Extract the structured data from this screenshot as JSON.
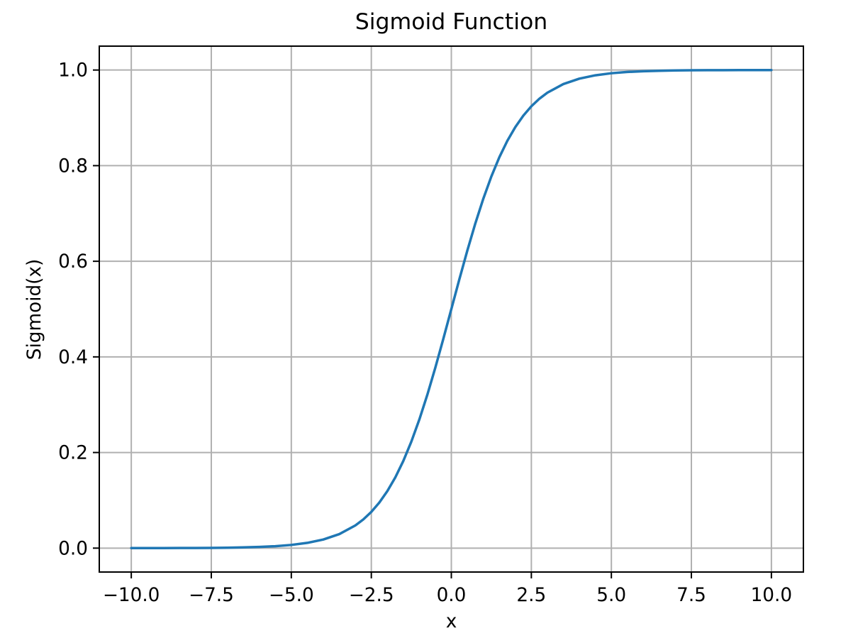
{
  "figure": {
    "background": "#ffffff",
    "text_color": "#000000"
  },
  "chart_data": {
    "type": "line",
    "title": "Sigmoid Function",
    "xlabel": "x",
    "ylabel": "Sigmoid(x)",
    "xlim": [
      -11,
      11
    ],
    "ylim": [
      -0.05,
      1.05
    ],
    "grid": true,
    "legend": null,
    "line_color": "#1f77b4",
    "grid_color": "#b0b0b0",
    "spine_color": "#000000",
    "x_ticks": [
      -10.0,
      -7.5,
      -5.0,
      -2.5,
      0.0,
      2.5,
      5.0,
      7.5,
      10.0
    ],
    "x_tick_labels": [
      "−10.0",
      "−7.5",
      "−5.0",
      "−2.5",
      "0.0",
      "2.5",
      "5.0",
      "7.5",
      "10.0"
    ],
    "y_ticks": [
      0.0,
      0.2,
      0.4,
      0.6,
      0.8,
      1.0
    ],
    "y_tick_labels": [
      "0.0",
      "0.2",
      "0.4",
      "0.6",
      "0.8",
      "1.0"
    ],
    "series": [
      {
        "x": [
          -10,
          -9.5,
          -9,
          -8.5,
          -8,
          -7.5,
          -7,
          -6.5,
          -6,
          -5.5,
          -5,
          -4.5,
          -4,
          -3.5,
          -3,
          -2.75,
          -2.5,
          -2.25,
          -2,
          -1.75,
          -1.5,
          -1.25,
          -1,
          -0.75,
          -0.5,
          -0.25,
          0,
          0.25,
          0.5,
          0.75,
          1,
          1.25,
          1.5,
          1.75,
          2,
          2.25,
          2.5,
          2.75,
          3,
          3.5,
          4,
          4.5,
          5,
          5.5,
          6,
          6.5,
          7,
          7.5,
          8,
          8.5,
          9,
          9.5,
          10
        ],
        "y": [
          4.5e-05,
          7.5e-05,
          0.000123,
          0.000203,
          0.000335,
          0.000553,
          0.000911,
          0.001503,
          0.002473,
          0.00407,
          0.006693,
          0.010987,
          0.017986,
          0.029312,
          0.047426,
          0.060087,
          0.075858,
          0.095349,
          0.119203,
          0.148047,
          0.182426,
          0.2227,
          0.268941,
          0.320821,
          0.377541,
          0.437823,
          0.5,
          0.562177,
          0.622459,
          0.679179,
          0.731059,
          0.7773,
          0.817574,
          0.851953,
          0.880797,
          0.904651,
          0.924142,
          0.939913,
          0.952574,
          0.970688,
          0.982014,
          0.989013,
          0.993307,
          0.99593,
          0.997527,
          0.998497,
          0.999089,
          0.999447,
          0.999665,
          0.999797,
          0.999877,
          0.999925,
          0.999955
        ]
      }
    ]
  }
}
